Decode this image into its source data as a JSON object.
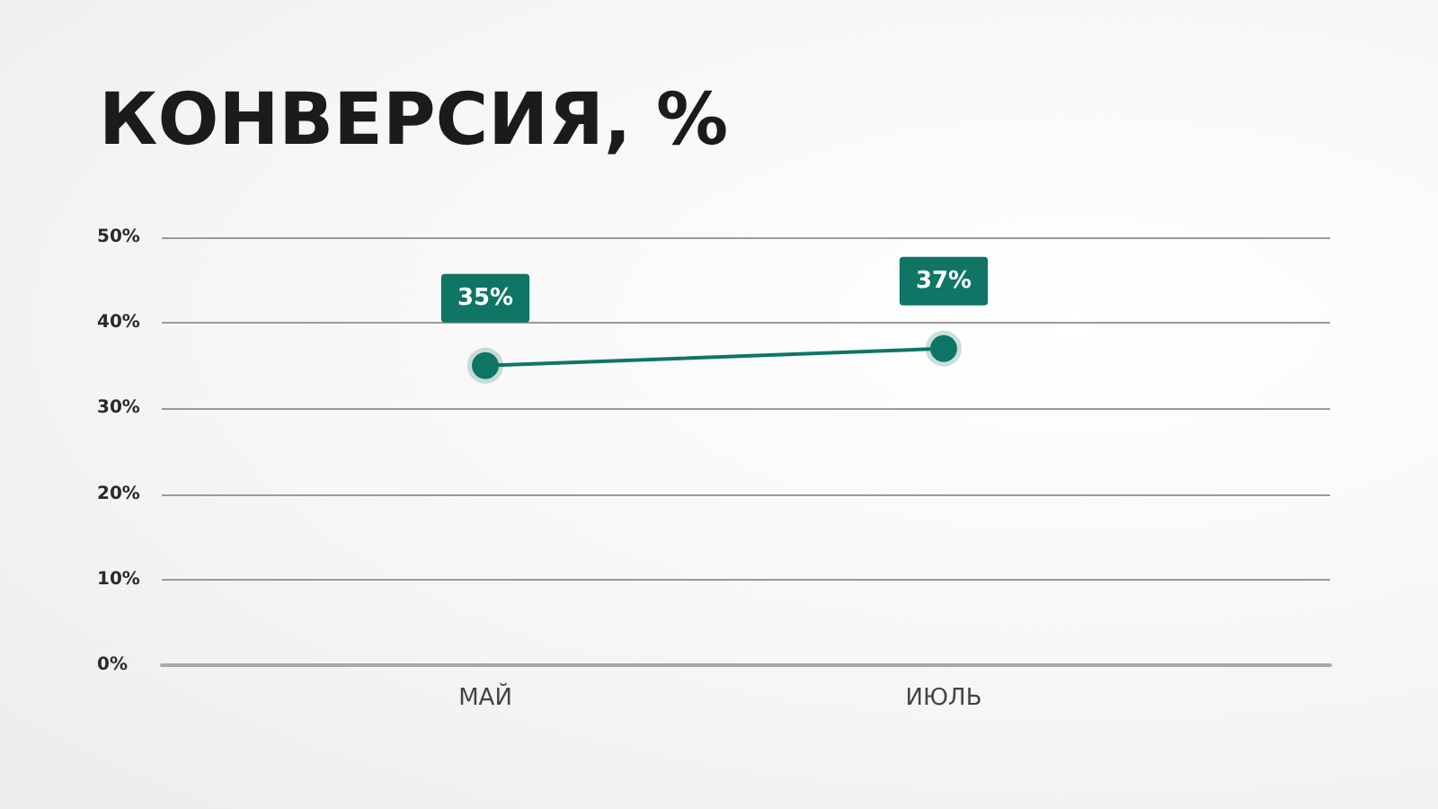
{
  "chart_data": {
    "type": "line",
    "title": "КОНВЕРСИЯ, %",
    "categories": [
      "МАЙ",
      "ИЮЛЬ"
    ],
    "series": [
      {
        "color": "#0f7565",
        "values": [
          35,
          37
        ],
        "value_labels": [
          "35%",
          "37%"
        ]
      }
    ],
    "ylim": [
      0,
      50
    ],
    "yticks": [
      {
        "value": 0,
        "label": "0%"
      },
      {
        "value": 10,
        "label": "10%"
      },
      {
        "value": 20,
        "label": "20%"
      },
      {
        "value": 30,
        "label": "30%"
      },
      {
        "value": 40,
        "label": "40%"
      },
      {
        "value": 50,
        "label": "50%"
      }
    ],
    "grid": "y",
    "marker": "circle",
    "line_style": "solid"
  }
}
